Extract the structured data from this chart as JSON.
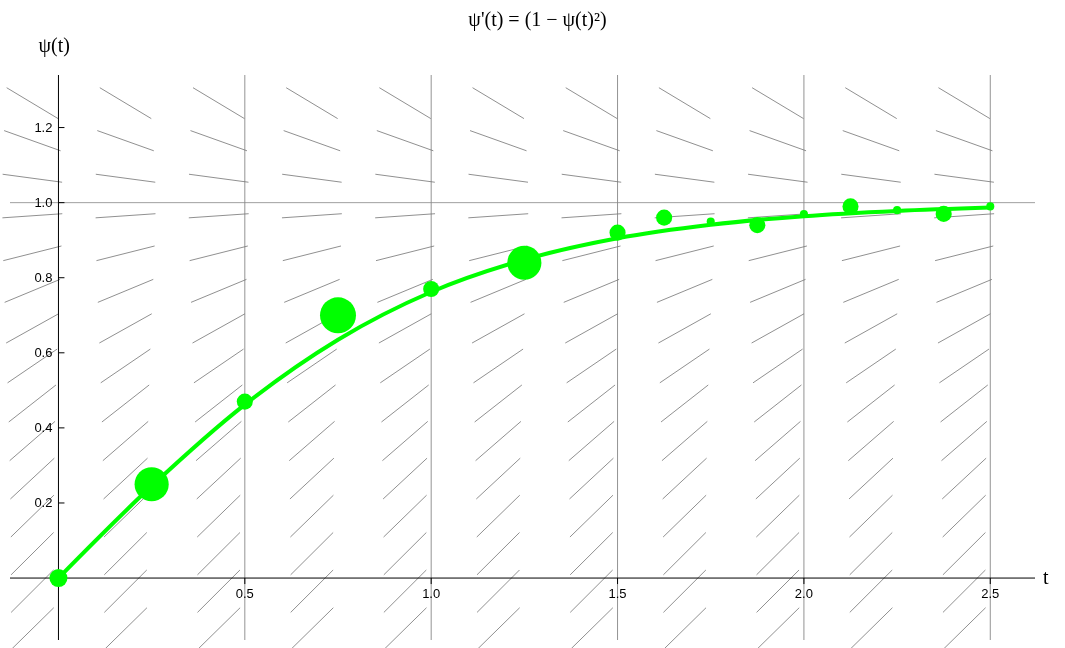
{
  "chart_data": {
    "type": "line",
    "title": "ψ'(t) = (1 − ψ(t)²)",
    "xlabel": "t",
    "ylabel": "ψ(t)",
    "xlim": [
      -0.13,
      2.62
    ],
    "ylim": [
      -0.165,
      1.34
    ],
    "xticks": [
      0.5,
      {
        "value": 1,
        "label": "1.0"
      },
      1.5,
      {
        "value": 2,
        "label": "2.0"
      },
      2.5
    ],
    "yticks": [
      0.2,
      0.4,
      0.6,
      0.8,
      {
        "value": 1,
        "label": "1.0"
      },
      1.2
    ],
    "grid": "x",
    "ref_lines": [
      {
        "axis": "y",
        "value": 1.0,
        "color": "#888888"
      }
    ],
    "series": [
      {
        "color": "#00ff00",
        "x": [
          0,
          0.25,
          0.5,
          0.75,
          1.0,
          1.25,
          1.5,
          1.75,
          2.0,
          2.25,
          2.5
        ],
        "values": [
          0,
          0.245,
          0.462,
          0.635,
          0.762,
          0.848,
          0.905,
          0.941,
          0.964,
          0.978,
          0.987
        ]
      },
      {
        "type": "bubble",
        "color": "#00ff00",
        "x": [
          0,
          0.25,
          0.5,
          0.75,
          1.0,
          1.25,
          1.5,
          1.625,
          1.75,
          1.875,
          2.0,
          2.125,
          2.25,
          2.375,
          2.5
        ],
        "values": [
          0,
          0.25,
          0.47,
          0.7,
          0.77,
          0.84,
          0.92,
          0.96,
          0.95,
          0.94,
          0.97,
          0.99,
          0.98,
          0.97,
          0.99
        ],
        "sizes": [
          0.25,
          0.9,
          0.2,
          1,
          0.2,
          0.9,
          0.2,
          0.2,
          0.05,
          0.2,
          0.05,
          0.2,
          0.05,
          0.2,
          0.05
        ]
      }
    ]
  }
}
